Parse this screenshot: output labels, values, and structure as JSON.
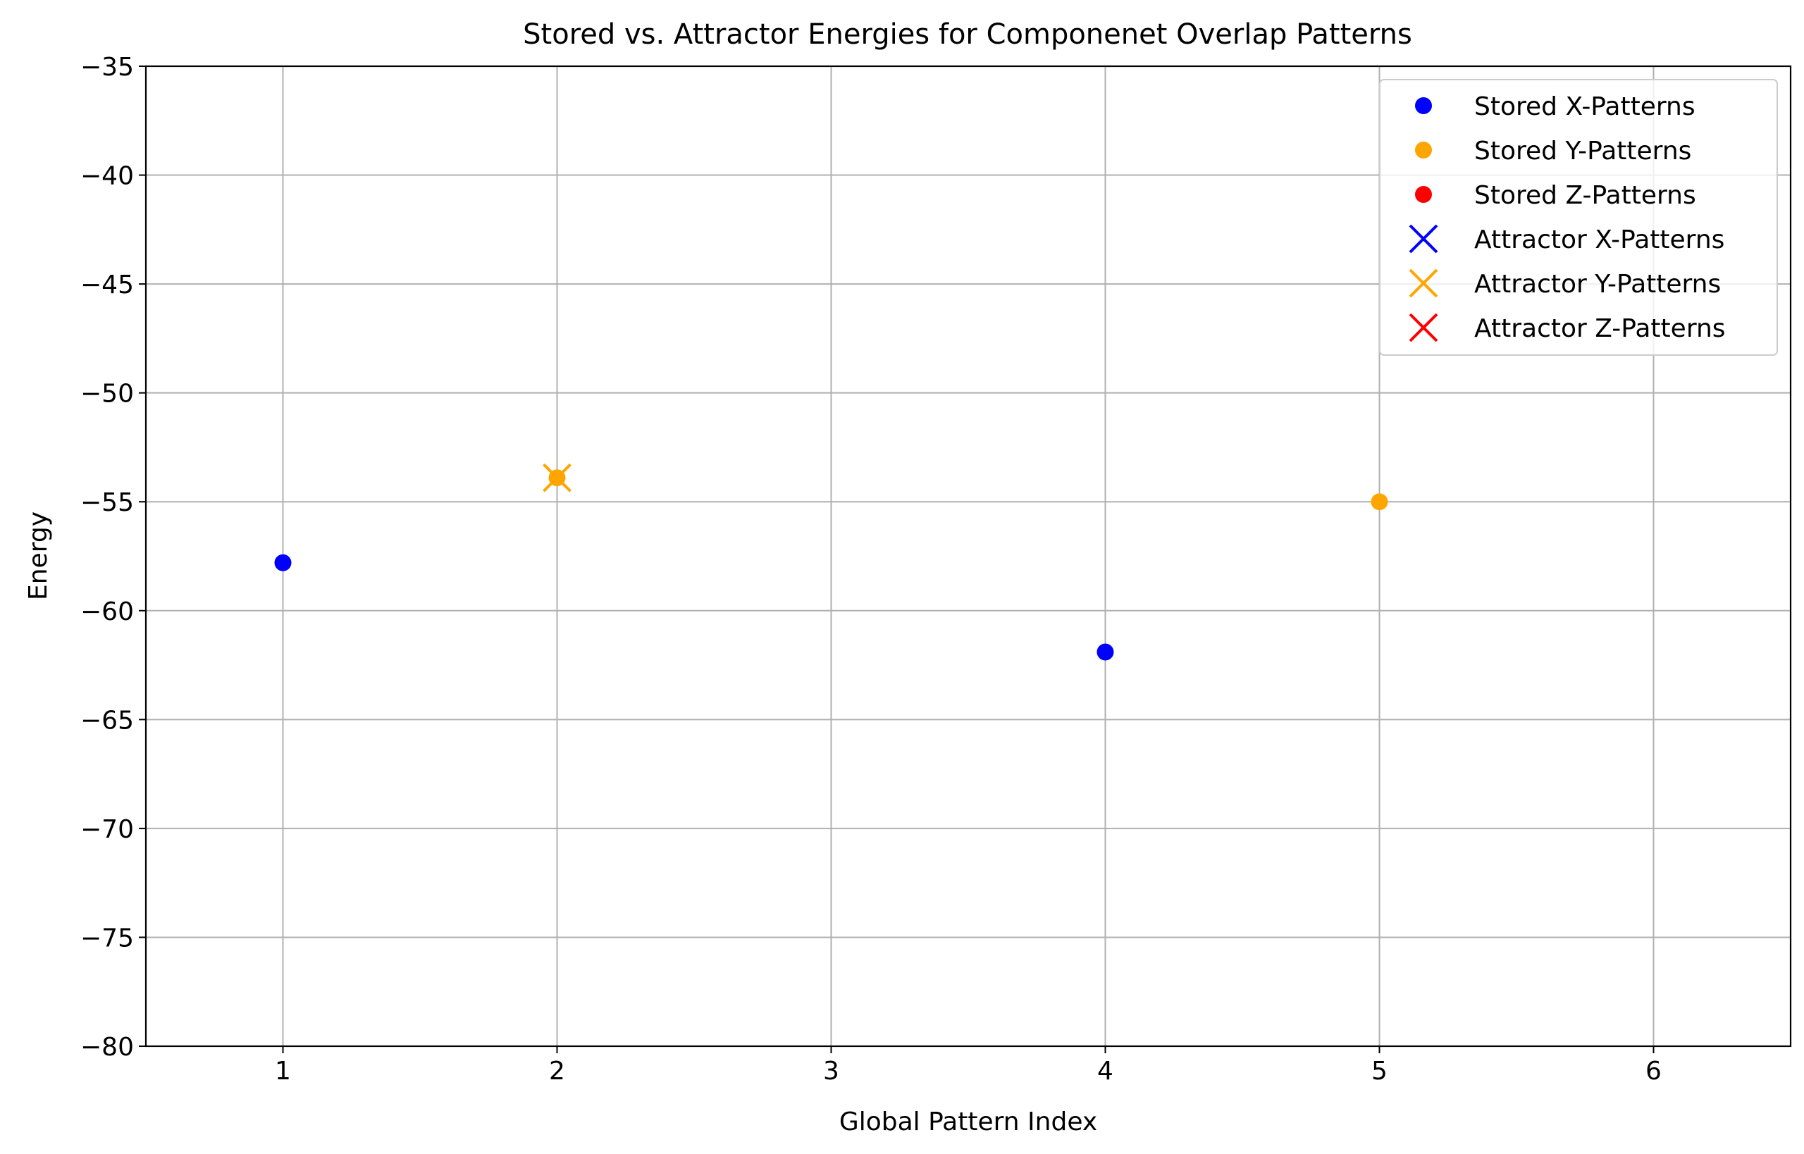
{
  "chart_data": {
    "type": "scatter",
    "title": "Stored vs. Attractor Energies for Componenet Overlap Patterns",
    "xlabel": "Global Pattern Index",
    "ylabel": "Energy",
    "xlim": [
      0.5,
      6.5
    ],
    "ylim": [
      -80,
      -35
    ],
    "xticks": [
      1,
      2,
      3,
      4,
      5,
      6
    ],
    "yticks": [
      -80,
      -75,
      -70,
      -65,
      -60,
      -55,
      -50,
      -45,
      -40,
      -35
    ],
    "xtick_labels": [
      "1",
      "2",
      "3",
      "4",
      "5",
      "6"
    ],
    "ytick_labels": [
      "−80",
      "−75",
      "−70",
      "−65",
      "−60",
      "−55",
      "−50",
      "−45",
      "−40",
      "−35"
    ],
    "grid": true,
    "legend_position": "top-right",
    "series": [
      {
        "name": "Stored X-Patterns",
        "marker": "circle",
        "color": "#0000ff",
        "points": [
          [
            1,
            -57.8
          ],
          [
            4,
            -61.9
          ]
        ]
      },
      {
        "name": "Stored Y-Patterns",
        "marker": "circle",
        "color": "#ffa500",
        "points": [
          [
            2,
            -53.9
          ],
          [
            5,
            -55.0
          ]
        ]
      },
      {
        "name": "Stored Z-Patterns",
        "marker": "circle",
        "color": "#ff0000",
        "points": []
      },
      {
        "name": "Attractor X-Patterns",
        "marker": "x",
        "color": "#0000ff",
        "points": []
      },
      {
        "name": "Attractor Y-Patterns",
        "marker": "x",
        "color": "#ffa500",
        "points": [
          [
            2,
            -53.9
          ]
        ]
      },
      {
        "name": "Attractor Z-Patterns",
        "marker": "x",
        "color": "#ff0000",
        "points": []
      }
    ]
  }
}
